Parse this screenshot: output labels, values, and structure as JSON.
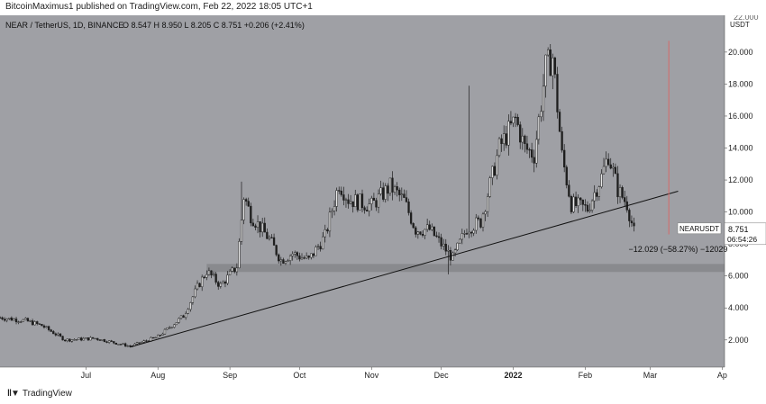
{
  "published_line": "BitcoinMaximus1 published on TradingView.com, Feb 22, 2022 18:05 UTC+1",
  "footer": {
    "logo_icon": "tradingview-logo-icon",
    "brand": "TradingView"
  },
  "colors": {
    "plot_bg": "#9fa0a5",
    "candle": "#1e1e1e",
    "support_zone": "#86878c",
    "measure_line": "#d46a6a",
    "trendline": "#111111"
  },
  "chart_data": {
    "type": "candlestick",
    "header": {
      "symbol": "NEAR / TetherUS, 1D, BINANCE",
      "ohlc": "O 8.547  H 8.950  L 8.205  C 8.751  +0.206 (+2.41%)"
    },
    "currency_label": "USDT",
    "top_partial_tick": "22.000",
    "y_ticks": [
      "2.000",
      "4.000",
      "6.000",
      "8.000",
      "10.000",
      "12.000",
      "14.000",
      "16.000",
      "18.000",
      "20.000"
    ],
    "y_tick_values": [
      2,
      4,
      6,
      8,
      10,
      12,
      14,
      16,
      18,
      20
    ],
    "ylim": [
      0.3,
      22.3
    ],
    "xlim": [
      "2021-05-25",
      "2022-04-02"
    ],
    "x_tick_labels": [
      "Jul",
      "Aug",
      "Sep",
      "Oct",
      "Nov",
      "Dec",
      "2022",
      "Feb",
      "Mar",
      "Ap"
    ],
    "x_tick_dates": [
      "2021-07-01",
      "2021-08-01",
      "2021-09-01",
      "2021-10-01",
      "2021-11-01",
      "2021-12-01",
      "2022-01-01",
      "2022-02-01",
      "2022-03-01",
      "2022-04-01"
    ],
    "price_keypoints": [
      [
        "2021-05-25",
        3.4
      ],
      [
        "2021-06-05",
        3.2
      ],
      [
        "2021-06-12",
        2.9
      ],
      [
        "2021-06-22",
        2.0
      ],
      [
        "2021-07-05",
        2.1
      ],
      [
        "2021-07-20",
        1.6
      ],
      [
        "2021-08-01",
        2.2
      ],
      [
        "2021-08-12",
        3.5
      ],
      [
        "2021-08-18",
        5.3
      ],
      [
        "2021-08-22",
        6.3
      ],
      [
        "2021-08-28",
        5.4
      ],
      [
        "2021-09-04",
        6.6
      ],
      [
        "2021-09-07",
        11.0
      ],
      [
        "2021-09-10",
        9.8
      ],
      [
        "2021-09-18",
        8.3
      ],
      [
        "2021-09-23",
        7.0
      ],
      [
        "2021-09-28",
        7.4
      ],
      [
        "2021-10-05",
        7.0
      ],
      [
        "2021-10-12",
        8.5
      ],
      [
        "2021-10-18",
        11.8
      ],
      [
        "2021-10-22",
        10.8
      ],
      [
        "2021-11-01",
        10.4
      ],
      [
        "2021-11-09",
        11.6
      ],
      [
        "2021-11-15",
        10.7
      ],
      [
        "2021-11-20",
        8.9
      ],
      [
        "2021-11-26",
        8.9
      ],
      [
        "2021-12-02",
        7.8
      ],
      [
        "2021-12-06",
        7.1
      ],
      [
        "2021-12-12",
        9.0
      ],
      [
        "2021-12-18",
        9.4
      ],
      [
        "2021-12-26",
        14.0
      ],
      [
        "2022-01-02",
        15.8
      ],
      [
        "2022-01-06",
        14.0
      ],
      [
        "2022-01-10",
        13.6
      ],
      [
        "2022-01-15",
        19.0
      ],
      [
        "2022-01-18",
        19.7
      ],
      [
        "2022-01-22",
        13.5
      ],
      [
        "2022-01-26",
        10.5
      ],
      [
        "2022-02-02",
        10.2
      ],
      [
        "2022-02-08",
        12.2
      ],
      [
        "2022-02-11",
        13.6
      ],
      [
        "2022-02-15",
        11.4
      ],
      [
        "2022-02-19",
        10.5
      ],
      [
        "2022-02-22",
        8.75
      ]
    ],
    "wick_spikes": [
      [
        "2021-12-13",
        17.9
      ],
      [
        "2021-12-04",
        6.1
      ],
      [
        "2021-09-06",
        11.9
      ],
      [
        "2022-01-17",
        20.5
      ]
    ],
    "support_zone": {
      "low": 6.25,
      "high": 6.75,
      "from": "2021-08-22"
    },
    "ascending_trendline": {
      "from": [
        "2021-07-20",
        1.55
      ],
      "to": [
        "2022-03-13",
        11.3
      ]
    },
    "measure_line": {
      "date": "2022-03-09",
      "from": 8.6,
      "to": 20.7
    },
    "measure_label": "−12.029 (−58.27%) −12029",
    "last_price_label": {
      "symbol": "NEARUSDT",
      "price": "8.751",
      "countdown": "06:54:26"
    }
  }
}
